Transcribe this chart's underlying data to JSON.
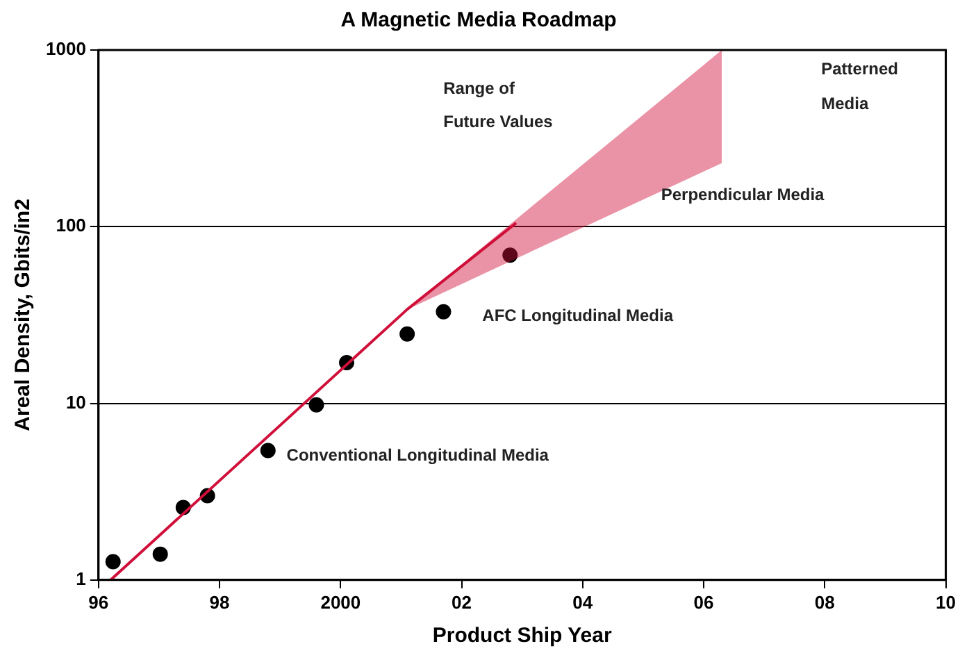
{
  "chart_data": {
    "type": "scatter",
    "title": "A Magnetic Media Roadmap",
    "xlabel": "Product Ship Year",
    "ylabel": "Areal Density, Gbits/in2",
    "log": "y",
    "grid": "y",
    "legend": false,
    "xlim": [
      1996,
      2010
    ],
    "xticks": [
      {
        "value": 1996,
        "label": "96"
      },
      {
        "value": 1998,
        "label": "98"
      },
      {
        "value": 2000,
        "label": "2000"
      },
      {
        "value": 2002,
        "label": "02"
      },
      {
        "value": 2004,
        "label": "04"
      },
      {
        "value": 2006,
        "label": "06"
      },
      {
        "value": 2008,
        "label": "08"
      },
      {
        "value": 2010,
        "label": "10"
      }
    ],
    "ylim": [
      1,
      1000
    ],
    "yticks": [
      1,
      10,
      100,
      1000
    ],
    "series": [
      {
        "type": "line",
        "color": "#d0103a",
        "x": [
          1996.2,
          2001.1,
          2002.9,
          2006.3
        ],
        "values": [
          1,
          34,
          105,
          null
        ],
        "lower": [
          null,
          34,
          66,
          229
        ],
        "upper": [
          null,
          34,
          110,
          1000
        ]
      },
      {
        "marker": "circle",
        "color": "#000000",
        "x": [
          1996.24,
          1997.02,
          1997.4,
          1997.8,
          1998.8,
          1999.6,
          2000.1,
          2001.1,
          2001.7,
          2002.8
        ],
        "values": [
          1.27,
          1.4,
          2.57,
          3.0,
          5.4,
          9.8,
          17,
          24.7,
          33,
          69
        ]
      }
    ],
    "annotations": [
      "Range of",
      "Future Values",
      "Patterned",
      "Media",
      "Perpendicular Media",
      "AFC Longitudinal Media",
      "Conventional Longitudinal Media"
    ]
  }
}
